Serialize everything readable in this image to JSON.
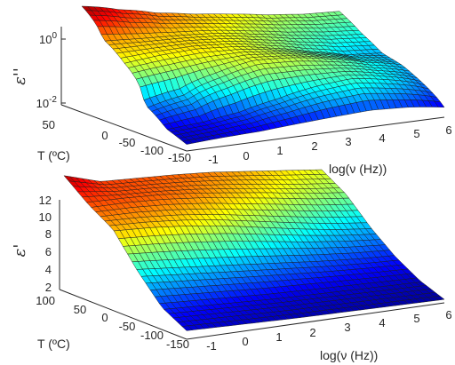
{
  "chart_data": [
    {
      "type": "surface",
      "zlabel": "ε''",
      "ylabel": "T (ºC)",
      "xlabel": "log(ν (Hz))",
      "zscale": "log",
      "x_ticks": [
        "-1",
        "0",
        "1",
        "2",
        "3",
        "4",
        "5",
        "6"
      ],
      "y_ticks": [
        "50",
        "0",
        "-50",
        "-100",
        "-150"
      ],
      "z_ticks": [
        "10^0",
        "10^-2"
      ],
      "xlim": [
        -1,
        6
      ],
      "ylim": [
        -150,
        100
      ],
      "zlim": [
        0.01,
        10
      ],
      "colormap": "jet",
      "grid": true,
      "surface_samples": {
        "T_values": [
          100,
          50,
          0,
          -50,
          -100,
          -150
        ],
        "log_freq_values": [
          -1,
          0,
          1,
          2,
          3,
          4,
          5,
          6
        ],
        "z": [
          [
            8.0,
            4.0,
            2.0,
            1.2,
            0.8,
            0.5,
            0.35,
            0.3
          ],
          [
            1.5,
            1.2,
            1.0,
            0.8,
            0.5,
            0.3,
            0.2,
            0.15
          ],
          [
            0.6,
            0.8,
            0.9,
            0.7,
            0.4,
            0.2,
            0.1,
            0.08
          ],
          [
            0.05,
            0.1,
            0.3,
            0.6,
            0.5,
            0.3,
            0.15,
            0.08
          ],
          [
            0.02,
            0.025,
            0.04,
            0.08,
            0.15,
            0.2,
            0.12,
            0.05
          ],
          [
            0.015,
            0.018,
            0.02,
            0.025,
            0.03,
            0.035,
            0.03,
            0.02
          ]
        ]
      }
    },
    {
      "type": "surface",
      "zlabel": "ε'",
      "ylabel": "T (ºC)",
      "xlabel": "log(ν (Hz))",
      "x_ticks": [
        "-1",
        "0",
        "1",
        "2",
        "3",
        "4",
        "5",
        "6"
      ],
      "y_ticks": [
        "100",
        "50",
        "0",
        "-50",
        "-100",
        "-150"
      ],
      "z_ticks": [
        "2",
        "4",
        "6",
        "8",
        "10",
        "12"
      ],
      "xlim": [
        -1,
        6
      ],
      "ylim": [
        -150,
        100
      ],
      "zlim": [
        2,
        12
      ],
      "colormap": "jet",
      "grid": true,
      "surface_samples": {
        "T_values": [
          100,
          50,
          0,
          -50,
          -100,
          -150
        ],
        "log_freq_values": [
          -1,
          0,
          1,
          2,
          3,
          4,
          5,
          6
        ],
        "z": [
          [
            11.5,
            10.2,
            10.0,
            9.8,
            9.5,
            9.0,
            8.5,
            8.0
          ],
          [
            10.0,
            10.0,
            9.8,
            9.4,
            8.8,
            8.2,
            7.5,
            7.0
          ],
          [
            9.0,
            8.8,
            8.4,
            7.8,
            7.0,
            6.2,
            5.5,
            5.0
          ],
          [
            6.0,
            5.6,
            5.2,
            4.8,
            4.4,
            4.0,
            3.7,
            3.5
          ],
          [
            3.6,
            3.4,
            3.2,
            3.0,
            2.9,
            2.8,
            2.7,
            2.6
          ],
          [
            2.8,
            2.7,
            2.6,
            2.5,
            2.45,
            2.4,
            2.35,
            2.3
          ]
        ]
      }
    }
  ]
}
